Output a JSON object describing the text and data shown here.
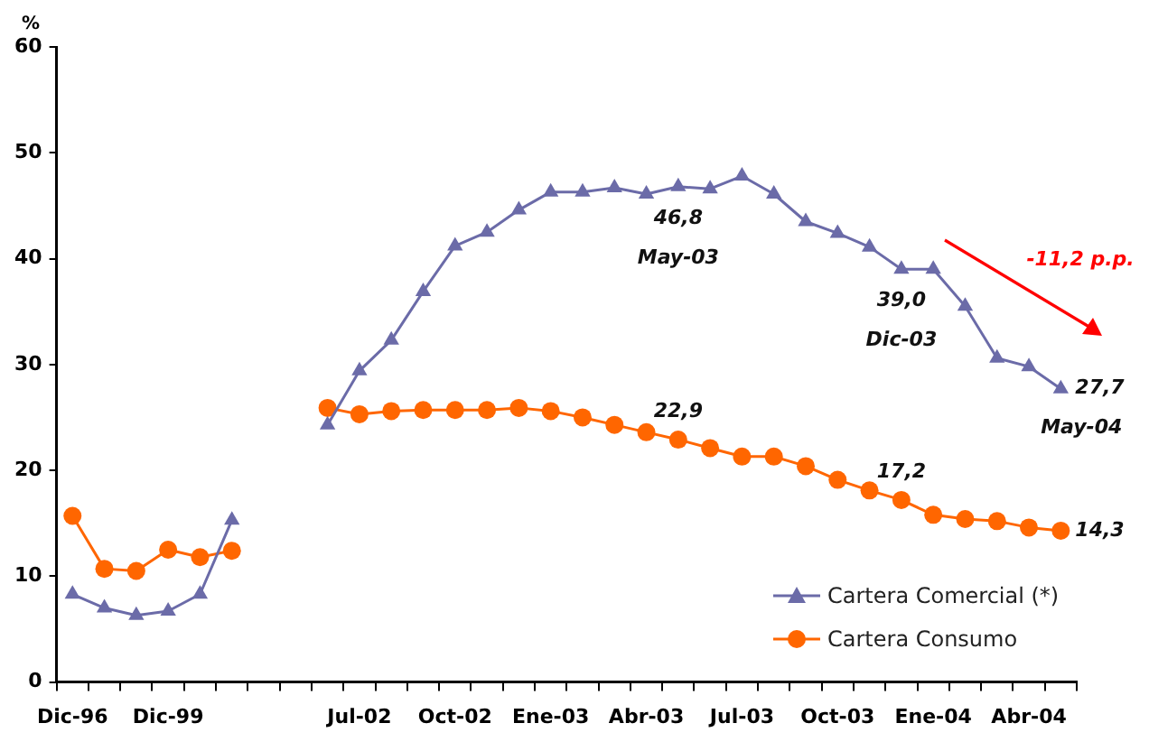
{
  "chart_data": {
    "type": "line",
    "ylabel": "%",
    "categories": [
      "Dic-96",
      null,
      null,
      "Dic-99",
      null,
      null,
      null,
      null,
      null,
      "Jul-02",
      null,
      null,
      "Oct-02",
      null,
      null,
      "Ene-03",
      null,
      null,
      "Abr-03",
      null,
      null,
      "Jul-03",
      null,
      null,
      "Oct-03",
      null,
      null,
      "Ene-04",
      null,
      null,
      "Abr-04",
      null
    ],
    "series": [
      {
        "name": "Cartera Comercial (*)",
        "color": "#6b6ba8",
        "marker": "triangle",
        "values": [
          8.3,
          7.0,
          6.3,
          6.7,
          8.3,
          15.3,
          null,
          null,
          24.3,
          29.4,
          32.3,
          36.9,
          41.2,
          42.5,
          44.6,
          46.3,
          46.3,
          46.7,
          46.1,
          46.8,
          46.6,
          47.8,
          46.1,
          43.5,
          42.4,
          41.1,
          39.0,
          39.0,
          35.5,
          30.6,
          29.8,
          27.7
        ],
        "value_labels": [
          null,
          null,
          null,
          null,
          null,
          null,
          null,
          null,
          null,
          null,
          null,
          null,
          null,
          null,
          null,
          null,
          null,
          null,
          null,
          "46,8\nMay-03",
          null,
          null,
          null,
          null,
          null,
          null,
          "39,0\nDic-03",
          null,
          null,
          null,
          null,
          "27,7\nMay-04"
        ]
      },
      {
        "name": "Cartera Consumo",
        "color": "#ff6600",
        "marker": "circle",
        "values": [
          15.7,
          10.7,
          10.5,
          12.5,
          11.8,
          12.4,
          null,
          null,
          25.9,
          25.3,
          25.6,
          25.7,
          25.7,
          25.7,
          25.9,
          25.6,
          25.0,
          24.3,
          23.6,
          22.9,
          22.1,
          21.3,
          21.3,
          20.4,
          19.1,
          18.1,
          17.2,
          15.8,
          15.4,
          15.2,
          14.6,
          14.3
        ],
        "value_labels": [
          null,
          null,
          null,
          null,
          null,
          null,
          null,
          null,
          null,
          null,
          null,
          null,
          null,
          null,
          null,
          null,
          null,
          null,
          null,
          "22,9",
          null,
          null,
          null,
          null,
          null,
          null,
          "17,2",
          null,
          null,
          null,
          null,
          "14,3"
        ]
      }
    ],
    "ylim": [
      0,
      60
    ],
    "yticks": [
      0,
      10,
      20,
      30,
      40,
      50,
      60
    ],
    "grid": false,
    "legend": "bottom right",
    "annotations": [
      "-11,2 p.p."
    ]
  }
}
